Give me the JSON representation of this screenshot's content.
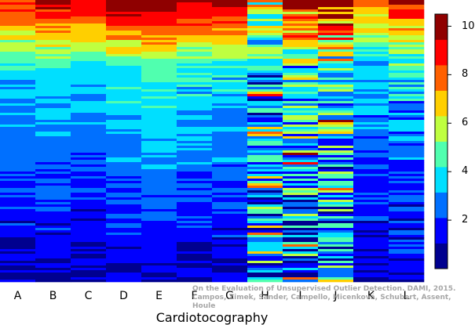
{
  "chart_data": {
    "type": "heatmap",
    "title": "",
    "xlabel": "Cardiotocography",
    "ylabel": "",
    "columns": [
      "A",
      "B",
      "C",
      "D",
      "E",
      "F",
      "G",
      "H",
      "I",
      "J",
      "K",
      "L"
    ],
    "row_count": 120,
    "value_range": [
      0,
      10.5
    ],
    "colorbar": {
      "ticks": [
        2,
        4,
        6,
        8,
        10
      ],
      "colors": [
        "#00008f",
        "#0000ff",
        "#0070ff",
        "#00dfff",
        "#50ffaf",
        "#bfff40",
        "#ffcf00",
        "#ff6000",
        "#ff0000",
        "#8f0000"
      ]
    },
    "column_profiles": [
      {
        "name": "A",
        "top": 9.0,
        "mid": 3.5,
        "bottom": 0.8,
        "noise": 0.7
      },
      {
        "name": "B",
        "top": 9.6,
        "mid": 3.7,
        "bottom": 0.9,
        "noise": 0.7
      },
      {
        "name": "C",
        "top": 9.6,
        "mid": 3.4,
        "bottom": 0.7,
        "noise": 0.6
      },
      {
        "name": "D",
        "top": 10.3,
        "mid": 4.2,
        "bottom": 0.9,
        "noise": 0.6
      },
      {
        "name": "E",
        "top": 10.5,
        "mid": 4.6,
        "bottom": 0.9,
        "noise": 0.5
      },
      {
        "name": "F",
        "top": 9.8,
        "mid": 4.0,
        "bottom": 0.8,
        "noise": 0.7
      },
      {
        "name": "G",
        "top": 9.8,
        "mid": 3.9,
        "bottom": 0.9,
        "noise": 0.7
      },
      {
        "name": "H",
        "top": 6.5,
        "mid": 3.0,
        "bottom": 2.6,
        "noise": 2.2
      },
      {
        "name": "I",
        "top": 8.5,
        "mid": 4.0,
        "bottom": 2.0,
        "noise": 2.6
      },
      {
        "name": "J",
        "top": 8.8,
        "mid": 4.5,
        "bottom": 2.2,
        "noise": 2.6
      },
      {
        "name": "K",
        "top": 7.5,
        "mid": 3.2,
        "bottom": 0.8,
        "noise": 0.9
      },
      {
        "name": "L",
        "top": 9.2,
        "mid": 3.6,
        "bottom": 1.1,
        "noise": 1.4
      }
    ]
  },
  "watermark": {
    "line1": "On the Evaluation of Unsupervised Outlier Detection. DAMI, 2015.",
    "line2": "Campos, Zimek, Sander, Campello, Micenková, Schubert, Assent, Houle"
  }
}
